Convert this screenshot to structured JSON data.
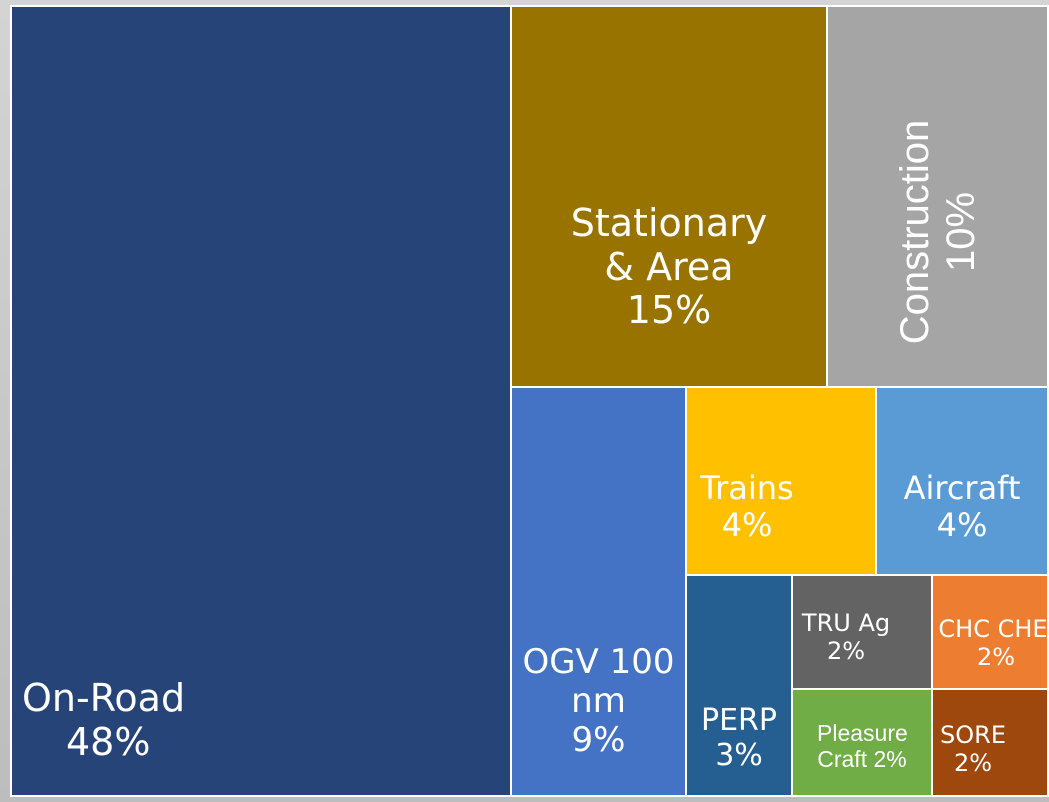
{
  "chart_data": {
    "type": "treemap",
    "title": "",
    "items": [
      {
        "id": "onroad",
        "label": "On-Road",
        "pct": "48%",
        "value": 48,
        "color": "#264478"
      },
      {
        "id": "stationary",
        "label": "Stationary & Area",
        "pct": "15%",
        "value": 15,
        "color": "#997300"
      },
      {
        "id": "construction",
        "label": "Construction",
        "pct": "10%",
        "value": 10,
        "color": "#a5a5a5"
      },
      {
        "id": "ogv",
        "label": "OGV 100 nm",
        "pct": "9%",
        "value": 9,
        "color": "#4472c4"
      },
      {
        "id": "trains",
        "label": "Trains",
        "pct": "4%",
        "value": 4,
        "color": "#ffc000"
      },
      {
        "id": "aircraft",
        "label": "Aircraft",
        "pct": "4%",
        "value": 4,
        "color": "#5b9bd5"
      },
      {
        "id": "perp",
        "label": "PERP",
        "pct": "3%",
        "value": 3,
        "color": "#255e91"
      },
      {
        "id": "truag",
        "label": "TRU Ag",
        "pct": "2%",
        "value": 2,
        "color": "#636363"
      },
      {
        "id": "chcche",
        "label": "CHC CHE",
        "pct": "2%",
        "value": 2,
        "color": "#ed7d31"
      },
      {
        "id": "pleasure",
        "label": "Pleasure Craft 2%",
        "pct": "",
        "value": 2,
        "color": "#70ad47"
      },
      {
        "id": "sore",
        "label": "SORE",
        "pct": "2%",
        "value": 2,
        "color": "#9e480e"
      }
    ]
  }
}
